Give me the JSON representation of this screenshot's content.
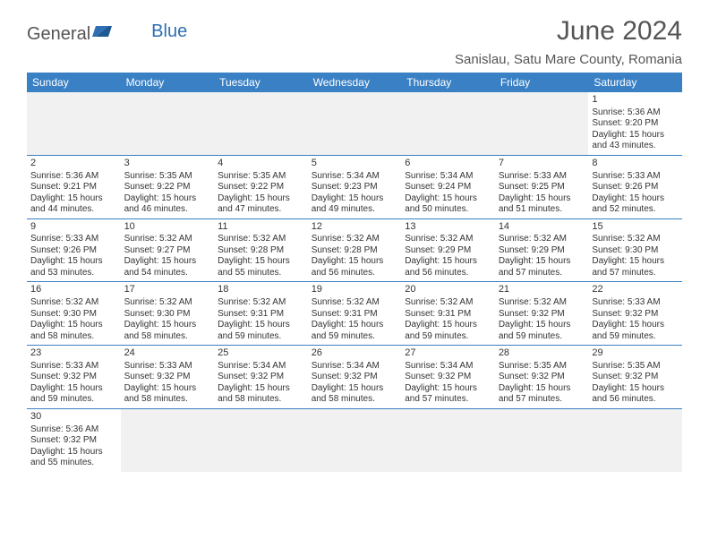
{
  "logo": {
    "general": "General",
    "blue": "Blue"
  },
  "title": "June 2024",
  "location": "Sanislau, Satu Mare County, Romania",
  "colors": {
    "header_bg": "#3a80c4",
    "header_text": "#ffffff",
    "cell_border": "#3a80c4",
    "empty_bg": "#f1f1f1",
    "title_color": "#555555"
  },
  "weekdays": [
    "Sunday",
    "Monday",
    "Tuesday",
    "Wednesday",
    "Thursday",
    "Friday",
    "Saturday"
  ],
  "weeks": [
    [
      null,
      null,
      null,
      null,
      null,
      null,
      {
        "n": "1",
        "sr": "Sunrise: 5:36 AM",
        "ss": "Sunset: 9:20 PM",
        "dl": "Daylight: 15 hours and 43 minutes."
      }
    ],
    [
      {
        "n": "2",
        "sr": "Sunrise: 5:36 AM",
        "ss": "Sunset: 9:21 PM",
        "dl": "Daylight: 15 hours and 44 minutes."
      },
      {
        "n": "3",
        "sr": "Sunrise: 5:35 AM",
        "ss": "Sunset: 9:22 PM",
        "dl": "Daylight: 15 hours and 46 minutes."
      },
      {
        "n": "4",
        "sr": "Sunrise: 5:35 AM",
        "ss": "Sunset: 9:22 PM",
        "dl": "Daylight: 15 hours and 47 minutes."
      },
      {
        "n": "5",
        "sr": "Sunrise: 5:34 AM",
        "ss": "Sunset: 9:23 PM",
        "dl": "Daylight: 15 hours and 49 minutes."
      },
      {
        "n": "6",
        "sr": "Sunrise: 5:34 AM",
        "ss": "Sunset: 9:24 PM",
        "dl": "Daylight: 15 hours and 50 minutes."
      },
      {
        "n": "7",
        "sr": "Sunrise: 5:33 AM",
        "ss": "Sunset: 9:25 PM",
        "dl": "Daylight: 15 hours and 51 minutes."
      },
      {
        "n": "8",
        "sr": "Sunrise: 5:33 AM",
        "ss": "Sunset: 9:26 PM",
        "dl": "Daylight: 15 hours and 52 minutes."
      }
    ],
    [
      {
        "n": "9",
        "sr": "Sunrise: 5:33 AM",
        "ss": "Sunset: 9:26 PM",
        "dl": "Daylight: 15 hours and 53 minutes."
      },
      {
        "n": "10",
        "sr": "Sunrise: 5:32 AM",
        "ss": "Sunset: 9:27 PM",
        "dl": "Daylight: 15 hours and 54 minutes."
      },
      {
        "n": "11",
        "sr": "Sunrise: 5:32 AM",
        "ss": "Sunset: 9:28 PM",
        "dl": "Daylight: 15 hours and 55 minutes."
      },
      {
        "n": "12",
        "sr": "Sunrise: 5:32 AM",
        "ss": "Sunset: 9:28 PM",
        "dl": "Daylight: 15 hours and 56 minutes."
      },
      {
        "n": "13",
        "sr": "Sunrise: 5:32 AM",
        "ss": "Sunset: 9:29 PM",
        "dl": "Daylight: 15 hours and 56 minutes."
      },
      {
        "n": "14",
        "sr": "Sunrise: 5:32 AM",
        "ss": "Sunset: 9:29 PM",
        "dl": "Daylight: 15 hours and 57 minutes."
      },
      {
        "n": "15",
        "sr": "Sunrise: 5:32 AM",
        "ss": "Sunset: 9:30 PM",
        "dl": "Daylight: 15 hours and 57 minutes."
      }
    ],
    [
      {
        "n": "16",
        "sr": "Sunrise: 5:32 AM",
        "ss": "Sunset: 9:30 PM",
        "dl": "Daylight: 15 hours and 58 minutes."
      },
      {
        "n": "17",
        "sr": "Sunrise: 5:32 AM",
        "ss": "Sunset: 9:30 PM",
        "dl": "Daylight: 15 hours and 58 minutes."
      },
      {
        "n": "18",
        "sr": "Sunrise: 5:32 AM",
        "ss": "Sunset: 9:31 PM",
        "dl": "Daylight: 15 hours and 59 minutes."
      },
      {
        "n": "19",
        "sr": "Sunrise: 5:32 AM",
        "ss": "Sunset: 9:31 PM",
        "dl": "Daylight: 15 hours and 59 minutes."
      },
      {
        "n": "20",
        "sr": "Sunrise: 5:32 AM",
        "ss": "Sunset: 9:31 PM",
        "dl": "Daylight: 15 hours and 59 minutes."
      },
      {
        "n": "21",
        "sr": "Sunrise: 5:32 AM",
        "ss": "Sunset: 9:32 PM",
        "dl": "Daylight: 15 hours and 59 minutes."
      },
      {
        "n": "22",
        "sr": "Sunrise: 5:33 AM",
        "ss": "Sunset: 9:32 PM",
        "dl": "Daylight: 15 hours and 59 minutes."
      }
    ],
    [
      {
        "n": "23",
        "sr": "Sunrise: 5:33 AM",
        "ss": "Sunset: 9:32 PM",
        "dl": "Daylight: 15 hours and 59 minutes."
      },
      {
        "n": "24",
        "sr": "Sunrise: 5:33 AM",
        "ss": "Sunset: 9:32 PM",
        "dl": "Daylight: 15 hours and 58 minutes."
      },
      {
        "n": "25",
        "sr": "Sunrise: 5:34 AM",
        "ss": "Sunset: 9:32 PM",
        "dl": "Daylight: 15 hours and 58 minutes."
      },
      {
        "n": "26",
        "sr": "Sunrise: 5:34 AM",
        "ss": "Sunset: 9:32 PM",
        "dl": "Daylight: 15 hours and 58 minutes."
      },
      {
        "n": "27",
        "sr": "Sunrise: 5:34 AM",
        "ss": "Sunset: 9:32 PM",
        "dl": "Daylight: 15 hours and 57 minutes."
      },
      {
        "n": "28",
        "sr": "Sunrise: 5:35 AM",
        "ss": "Sunset: 9:32 PM",
        "dl": "Daylight: 15 hours and 57 minutes."
      },
      {
        "n": "29",
        "sr": "Sunrise: 5:35 AM",
        "ss": "Sunset: 9:32 PM",
        "dl": "Daylight: 15 hours and 56 minutes."
      }
    ],
    [
      {
        "n": "30",
        "sr": "Sunrise: 5:36 AM",
        "ss": "Sunset: 9:32 PM",
        "dl": "Daylight: 15 hours and 55 minutes."
      },
      null,
      null,
      null,
      null,
      null,
      null
    ]
  ]
}
